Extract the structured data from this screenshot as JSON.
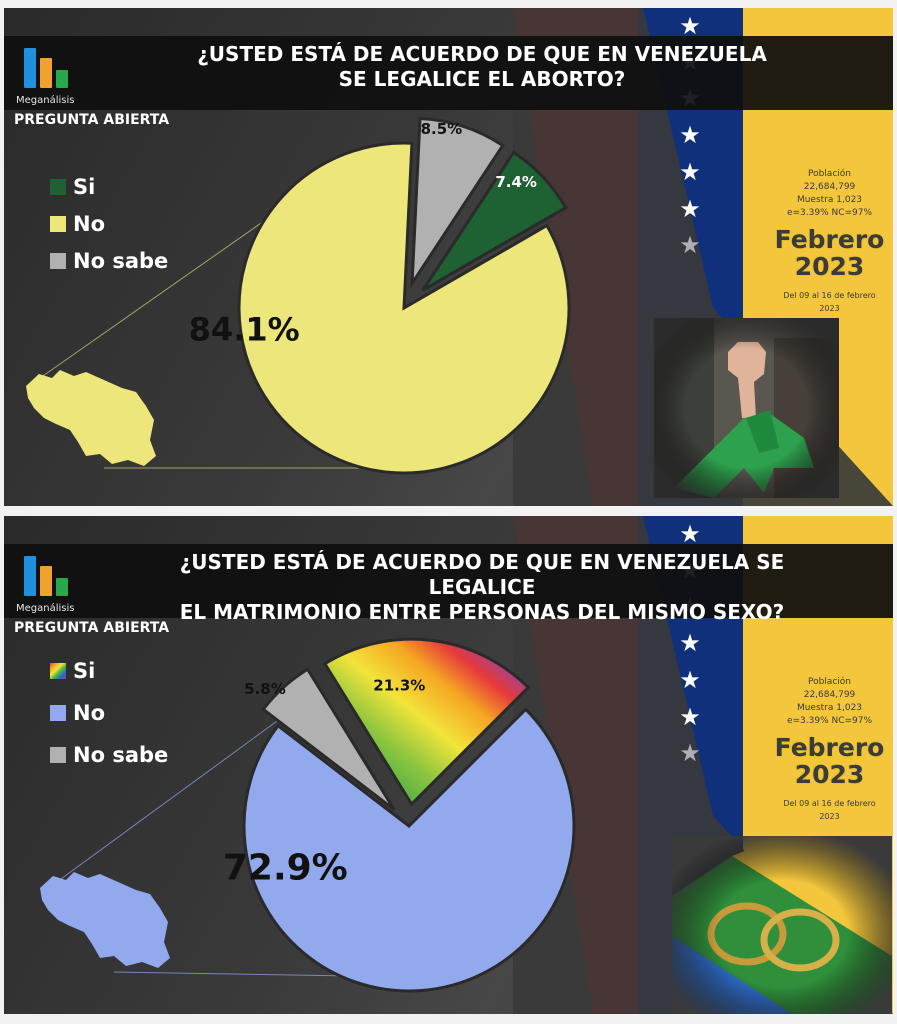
{
  "brand": "Meganálisis",
  "colors": {
    "flag_red": "#e8141c",
    "flag_blue": "#11307b",
    "flag_yellow": "#f3c63c",
    "logo_blue": "#1f8fe0",
    "logo_orange": "#f2a22a",
    "logo_green": "#27a84a"
  },
  "panels": [
    {
      "title_line1": "¿USTED ESTÁ DE ACUERDO DE QUE EN VENEZUELA",
      "title_line2": "SE LEGALICE EL ABORTO?",
      "subtitle": "PREGUNTA ABIERTA",
      "legend": [
        {
          "label": "Si",
          "color": "#1e6132"
        },
        {
          "label": "No",
          "color": "#ede67a"
        },
        {
          "label": "No sabe",
          "color": "#b1b1b1"
        }
      ],
      "meta": {
        "poblacion": "Población",
        "poblacion_value": "22,684,799",
        "muestra": "Muestra 1,023",
        "margin": "e=3.39% NC=97%",
        "month": "Febrero",
        "year": "2023",
        "dates": "Del 09 al 16 de febrero 2023"
      },
      "photo_icon": "raised-fist-green-scarf-photo"
    },
    {
      "title_line1": "¿USTED ESTÁ DE ACUERDO DE QUE EN VENEZUELA SE LEGALICE",
      "title_line2": "EL MATRIMONIO ENTRE PERSONAS DEL MISMO SEXO?",
      "subtitle": "PREGUNTA ABIERTA",
      "legend": [
        {
          "label": "Si",
          "color": "rainbow"
        },
        {
          "label": "No",
          "color": "#93a9ed"
        },
        {
          "label": "No sabe",
          "color": "#b1b1b1"
        }
      ],
      "meta": {
        "poblacion": "Población",
        "poblacion_value": "22,684,799",
        "muestra": "Muestra 1,023",
        "margin": "e=3.39% NC=97%",
        "month": "Febrero",
        "year": "2023",
        "dates": "Del 09 al 16 de febrero 2023"
      },
      "photo_icon": "wedding-rings-rainbow-photo"
    }
  ],
  "chart_data": [
    {
      "type": "pie",
      "title": "¿USTED ESTÁ DE ACUERDO DE QUE EN VENEZUELA SE LEGALICE EL ABORTO?",
      "categories": [
        "No",
        "No sabe",
        "Si"
      ],
      "values": [
        84.1,
        8.5,
        7.4
      ],
      "labels": [
        "84.1%",
        "8.5%",
        "7.4%"
      ],
      "colors": [
        "#ede67a",
        "#b1b1b1",
        "#1e6132"
      ],
      "label_colors": [
        "#111111",
        "#111111",
        "#ffffff"
      ],
      "exploded": [
        false,
        true,
        true
      ],
      "legend_position": "left"
    },
    {
      "type": "pie",
      "title": "¿USTED ESTÁ DE ACUERDO DE QUE EN VENEZUELA SE LEGALICE EL MATRIMONIO ENTRE PERSONAS DEL MISMO SEXO?",
      "categories": [
        "No",
        "No sabe",
        "Si"
      ],
      "values": [
        72.9,
        5.8,
        21.3
      ],
      "labels": [
        "72.9%",
        "5.8%",
        "21.3%"
      ],
      "colors": [
        "#93a9ed",
        "#b1b1b1",
        "rainbow"
      ],
      "label_colors": [
        "#111111",
        "#111111",
        "#111111"
      ],
      "exploded": [
        false,
        true,
        true
      ],
      "legend_position": "left"
    }
  ]
}
